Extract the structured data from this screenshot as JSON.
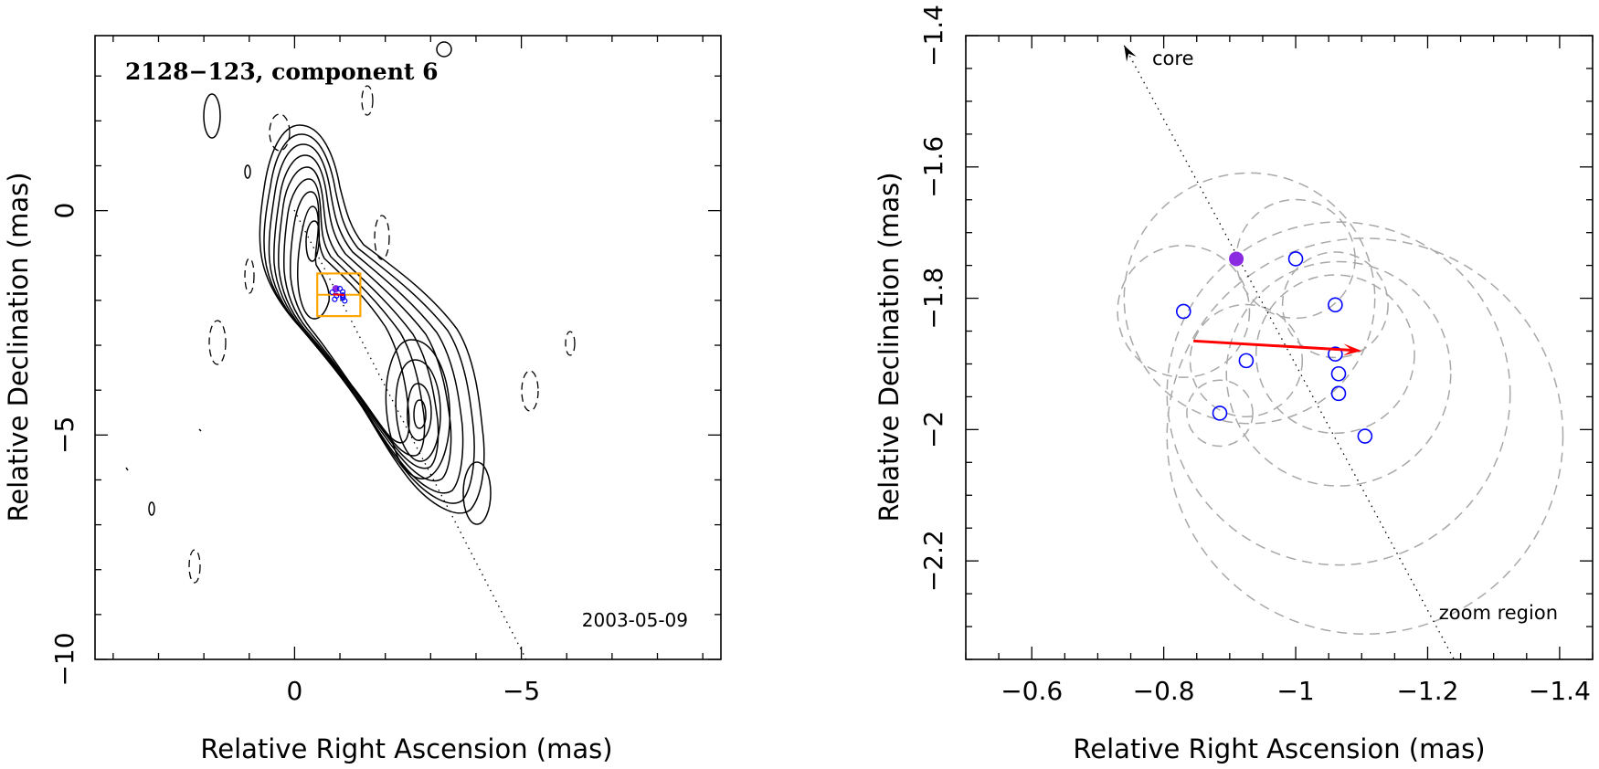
{
  "chart_data": [
    {
      "type": "contour",
      "title": "2128−123, component 6",
      "date_label": "2003-05-09",
      "xlabel": "Relative Right Ascension (mas)",
      "ylabel": "Relative Declination (mas)",
      "xlim": [
        4.4,
        -9.4
      ],
      "ylim": [
        -10.0,
        3.9
      ],
      "xticks": [
        0,
        -5
      ],
      "xtick_labels": [
        "0",
        "−5"
      ],
      "yticks": [
        0,
        -5,
        -10
      ],
      "ytick_labels": [
        "0",
        "−5",
        "−10"
      ],
      "zoom_box": {
        "x_range": [
          -0.5,
          -1.45
        ],
        "y_range": [
          -1.4,
          -2.35
        ],
        "color": "#ffa500"
      },
      "component": {
        "x": -1.0,
        "y": -1.9
      },
      "contour_colors": {
        "positive": "#000000",
        "negative": "#000000"
      }
    },
    {
      "type": "scatter",
      "xlabel": "Relative Right Ascension (mas)",
      "ylabel": "Relative Declination (mas)",
      "xlim": [
        -0.5,
        -1.45
      ],
      "ylim": [
        -2.35,
        -1.4
      ],
      "xticks": [
        -0.6,
        -0.8,
        -1.0,
        -1.2,
        -1.4
      ],
      "xtick_labels": [
        "−0.6",
        "−0.8",
        "−1",
        "−1.2",
        "−1.4"
      ],
      "yticks": [
        -1.4,
        -1.6,
        -1.8,
        -2.0,
        -2.2
      ],
      "ytick_labels": [
        "−1.4",
        "−1.6",
        "−1.8",
        "−2",
        "−2.2"
      ],
      "core_label": "core",
      "zoom_label": "zoom region",
      "reference_point": {
        "x": -0.91,
        "y": -1.74,
        "color": "#8a2be2"
      },
      "epoch_points": [
        {
          "x": -0.83,
          "y": -1.82
        },
        {
          "x": -1.0,
          "y": -1.74
        },
        {
          "x": -1.06,
          "y": -1.81
        },
        {
          "x": -0.925,
          "y": -1.895
        },
        {
          "x": -1.06,
          "y": -1.885
        },
        {
          "x": -1.065,
          "y": -1.915
        },
        {
          "x": -1.065,
          "y": -1.945
        },
        {
          "x": -0.885,
          "y": -1.975
        },
        {
          "x": -1.105,
          "y": -2.01
        }
      ],
      "epoch_point_color": "#0000ff",
      "motion_vector": {
        "x0": -0.845,
        "y0": -1.865,
        "x1": -1.1,
        "y1": -1.88,
        "color": "#ff0000"
      },
      "position_circles": [
        {
          "x": -0.83,
          "y": -1.82,
          "r": 0.1
        },
        {
          "x": -0.925,
          "y": -1.895,
          "r": 0.085
        },
        {
          "x": -0.885,
          "y": -1.975,
          "r": 0.05
        },
        {
          "x": -1.0,
          "y": -1.74,
          "r": 0.09
        },
        {
          "x": -1.06,
          "y": -1.81,
          "r": 0.08
        },
        {
          "x": -1.06,
          "y": -1.885,
          "r": 0.12
        },
        {
          "x": -0.93,
          "y": -1.8,
          "r": 0.19
        },
        {
          "x": -1.065,
          "y": -1.915,
          "r": 0.17
        },
        {
          "x": -1.065,
          "y": -1.945,
          "r": 0.26
        },
        {
          "x": -1.105,
          "y": -2.01,
          "r": 0.3
        }
      ],
      "jet_axis": {
        "x0": -0.74,
        "y0": -1.415,
        "x1": -1.24,
        "y1": -2.35
      },
      "colors": {
        "circles": "#a8a8a8",
        "axis": "#000000"
      }
    }
  ]
}
